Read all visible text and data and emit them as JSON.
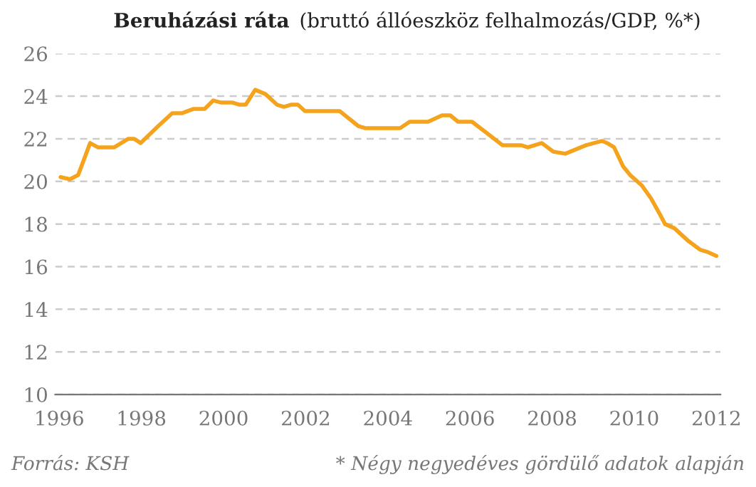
{
  "chart_data": {
    "type": "line",
    "title": "Beruházási ráta",
    "subtitle": "(bruttó állóeszköz felhalmozás/GDP, %*)",
    "x": [
      1996.03,
      1996.26,
      1996.46,
      1996.75,
      1996.94,
      1997.34,
      1997.68,
      1997.82,
      1997.98,
      1998.41,
      1998.75,
      1998.98,
      1999.26,
      1999.54,
      1999.75,
      1999.94,
      2000.22,
      2000.39,
      2000.54,
      2000.77,
      2001.02,
      2001.3,
      2001.47,
      2001.64,
      2001.81,
      2001.98,
      2002.83,
      2003.28,
      2003.45,
      2004.3,
      2004.53,
      2004.98,
      2005.32,
      2005.52,
      2005.71,
      2006.05,
      2006.39,
      2006.79,
      2007.24,
      2007.41,
      2007.75,
      2008.03,
      2008.32,
      2008.83,
      2009.22,
      2009.34,
      2009.51,
      2009.73,
      2009.9,
      2010.19,
      2010.41,
      2010.64,
      2010.75,
      2010.98,
      2011.32,
      2011.6,
      2011.77,
      2012.0
    ],
    "series": [
      {
        "color": "#f5a31c",
        "values": [
          20.2,
          20.1,
          20.3,
          21.8,
          21.6,
          21.6,
          22.0,
          22.0,
          21.8,
          22.6,
          23.2,
          23.2,
          23.4,
          23.4,
          23.8,
          23.7,
          23.7,
          23.6,
          23.6,
          24.3,
          24.1,
          23.6,
          23.5,
          23.6,
          23.6,
          23.3,
          23.3,
          22.6,
          22.5,
          22.5,
          22.8,
          22.8,
          23.1,
          23.1,
          22.8,
          22.8,
          22.3,
          21.7,
          21.7,
          21.6,
          21.8,
          21.4,
          21.3,
          21.7,
          21.9,
          21.8,
          21.6,
          20.7,
          20.3,
          19.8,
          19.2,
          18.4,
          18.0,
          17.8,
          17.2,
          16.8,
          16.7,
          16.5
        ]
      }
    ],
    "xlim": [
      1995.9,
      2012.1
    ],
    "xticks": [
      1996,
      1998,
      2000,
      2002,
      2004,
      2006,
      2008,
      2010,
      2012
    ],
    "ylim": [
      10,
      26
    ],
    "yticks": [
      10,
      12,
      14,
      16,
      18,
      20,
      22,
      24,
      26
    ],
    "grid": "y",
    "line_style": "solid",
    "marker": "none",
    "annotations": [
      "Forrás: KSH",
      "* Négy negyedéves gördülő adatok alapján"
    ]
  }
}
